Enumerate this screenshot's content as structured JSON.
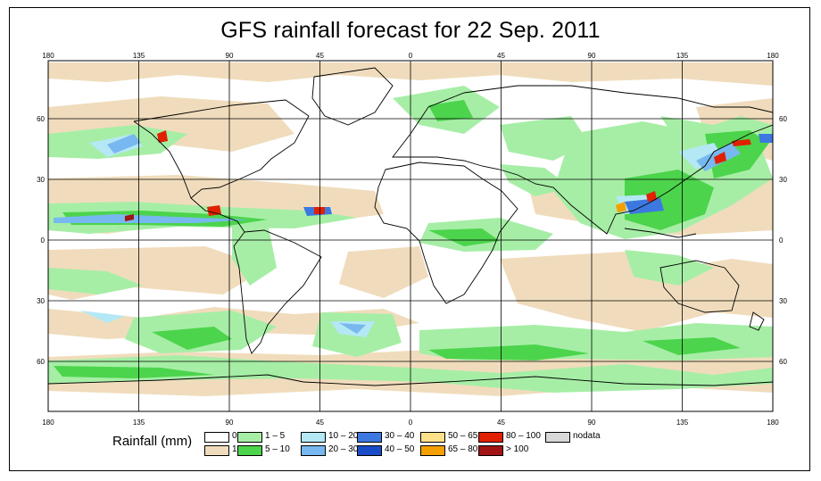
{
  "title": "GFS rainfall forecast for 22 Sep. 2011",
  "axes": {
    "lon_labels": [
      "180",
      "135",
      "90",
      "45",
      "0",
      "45",
      "90",
      "135",
      "180"
    ],
    "lat_labels": [
      "60",
      "30",
      "0",
      "30",
      "60"
    ]
  },
  "legend": {
    "title": "Rainfall (mm)",
    "items": [
      {
        "label": "0",
        "color": "#ffffff"
      },
      {
        "label": "1",
        "color": "#f0dcbc"
      },
      {
        "label": "1 – 5",
        "color": "#a6eea6"
      },
      {
        "label": "5 – 10",
        "color": "#4cd44c"
      },
      {
        "label": "10 – 20",
        "color": "#b4e8f4"
      },
      {
        "label": "20 – 30",
        "color": "#78b8f0"
      },
      {
        "label": "30 – 40",
        "color": "#3c78e0"
      },
      {
        "label": "40 – 50",
        "color": "#1a4cc8"
      },
      {
        "label": "50 – 65",
        "color": "#fce08a"
      },
      {
        "label": "65 – 80",
        "color": "#f4a000"
      },
      {
        "label": "80 – 100",
        "color": "#e02000"
      },
      {
        "label": "> 100",
        "color": "#a01414"
      },
      {
        "label": "nodata",
        "color": "#d8d8d8"
      }
    ]
  }
}
